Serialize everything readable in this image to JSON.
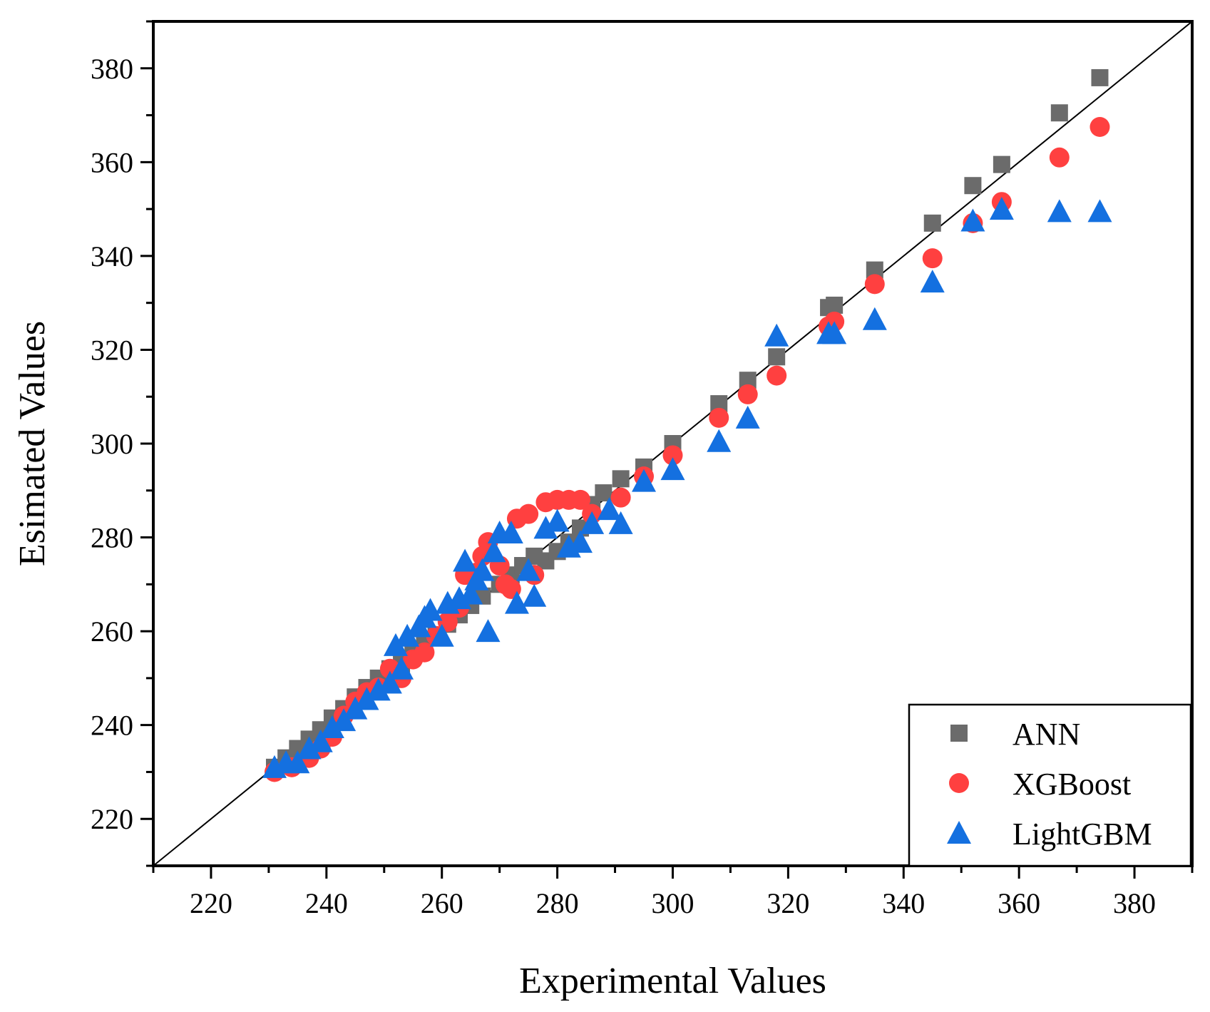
{
  "chart_data": {
    "type": "scatter",
    "title": "",
    "xlabel": "Experimental Values",
    "ylabel": "Esimated Values",
    "xlim": [
      210,
      390
    ],
    "ylim": [
      210,
      390
    ],
    "x_ticks": [
      "220",
      "240",
      "260",
      "280",
      "300",
      "320",
      "340",
      "360",
      "380"
    ],
    "y_ticks": [
      "220",
      "240",
      "260",
      "280",
      "300",
      "320",
      "340",
      "360",
      "380"
    ],
    "reference_line": {
      "from": [
        210,
        210
      ],
      "to": [
        390,
        390
      ]
    },
    "legend_position": "bottom-right",
    "series": [
      {
        "name": "ANN",
        "marker": "square",
        "color": "#6b6b6b",
        "points": [
          [
            231,
            231
          ],
          [
            233,
            233
          ],
          [
            235,
            235
          ],
          [
            237,
            237
          ],
          [
            239,
            239
          ],
          [
            241,
            241.5
          ],
          [
            243,
            243.5
          ],
          [
            245,
            246
          ],
          [
            247,
            248
          ],
          [
            249,
            250
          ],
          [
            251,
            252
          ],
          [
            253,
            253
          ],
          [
            255,
            255.5
          ],
          [
            257,
            257
          ],
          [
            259,
            259
          ],
          [
            261,
            261.5
          ],
          [
            263,
            263.5
          ],
          [
            265,
            265.5
          ],
          [
            267,
            267.5
          ],
          [
            270,
            270
          ],
          [
            272,
            272
          ],
          [
            274,
            274
          ],
          [
            276,
            276
          ],
          [
            278,
            275
          ],
          [
            280,
            277
          ],
          [
            282,
            279
          ],
          [
            284,
            282
          ],
          [
            286,
            287
          ],
          [
            288,
            289.5
          ],
          [
            291,
            292.5
          ],
          [
            295,
            295
          ],
          [
            300,
            300
          ],
          [
            308,
            308.5
          ],
          [
            313,
            313.5
          ],
          [
            318,
            318.5
          ],
          [
            327,
            329
          ],
          [
            328,
            329.5
          ],
          [
            335,
            337
          ],
          [
            345,
            347
          ],
          [
            352,
            355
          ],
          [
            357,
            359.5
          ],
          [
            367,
            370.5
          ],
          [
            374,
            378
          ]
        ]
      },
      {
        "name": "XGBoost",
        "marker": "circle",
        "color": "#ff4040",
        "points": [
          [
            231,
            230
          ],
          [
            234,
            231
          ],
          [
            237,
            233
          ],
          [
            239,
            235
          ],
          [
            241,
            237.5
          ],
          [
            243,
            242
          ],
          [
            245,
            245
          ],
          [
            247,
            247
          ],
          [
            249,
            248
          ],
          [
            251,
            252
          ],
          [
            253,
            250
          ],
          [
            255,
            254
          ],
          [
            257,
            255.5
          ],
          [
            259,
            259
          ],
          [
            261,
            262
          ],
          [
            263,
            265
          ],
          [
            264,
            272
          ],
          [
            266,
            272.5
          ],
          [
            267,
            276
          ],
          [
            268,
            279
          ],
          [
            270,
            274
          ],
          [
            271,
            270
          ],
          [
            272,
            269
          ],
          [
            273,
            284
          ],
          [
            275,
            285
          ],
          [
            276,
            272
          ],
          [
            278,
            287.5
          ],
          [
            280,
            288
          ],
          [
            282,
            288
          ],
          [
            284,
            288
          ],
          [
            286,
            285
          ],
          [
            291,
            288.5
          ],
          [
            295,
            293
          ],
          [
            300,
            297.5
          ],
          [
            308,
            305.5
          ],
          [
            313,
            310.5
          ],
          [
            318,
            314.5
          ],
          [
            327,
            325
          ],
          [
            328,
            326
          ],
          [
            335,
            334
          ],
          [
            345,
            339.5
          ],
          [
            352,
            347
          ],
          [
            357,
            351.5
          ],
          [
            367,
            361
          ],
          [
            374,
            367.5
          ]
        ]
      },
      {
        "name": "LightGBM",
        "marker": "triangle",
        "color": "#1470e0",
        "points": [
          [
            231,
            231
          ],
          [
            233,
            232
          ],
          [
            235,
            232
          ],
          [
            237,
            235
          ],
          [
            239,
            236.5
          ],
          [
            241,
            239.5
          ],
          [
            243,
            241
          ],
          [
            245,
            243.5
          ],
          [
            247,
            245.5
          ],
          [
            249,
            247.5
          ],
          [
            251,
            249
          ],
          [
            252,
            257
          ],
          [
            253,
            252
          ],
          [
            254,
            259
          ],
          [
            256,
            261
          ],
          [
            257,
            263
          ],
          [
            258,
            264.5
          ],
          [
            260,
            259
          ],
          [
            261,
            266
          ],
          [
            263,
            267
          ],
          [
            264,
            275
          ],
          [
            265,
            268
          ],
          [
            266,
            271
          ],
          [
            267,
            273
          ],
          [
            268,
            260
          ],
          [
            269,
            277
          ],
          [
            270,
            281
          ],
          [
            272,
            281
          ],
          [
            273,
            266
          ],
          [
            275,
            273
          ],
          [
            276,
            267.5
          ],
          [
            278,
            282
          ],
          [
            280,
            283.5
          ],
          [
            282,
            278
          ],
          [
            284,
            279
          ],
          [
            286,
            283
          ],
          [
            289,
            286
          ],
          [
            291,
            283
          ],
          [
            295,
            292
          ],
          [
            300,
            294.5
          ],
          [
            308,
            300.5
          ],
          [
            313,
            305.5
          ],
          [
            318,
            323
          ],
          [
            327,
            323.5
          ],
          [
            328,
            323.5
          ],
          [
            335,
            326.5
          ],
          [
            345,
            334.5
          ],
          [
            352,
            347.5
          ],
          [
            357,
            350
          ],
          [
            367,
            349.5
          ],
          [
            374,
            349.5
          ]
        ]
      }
    ]
  }
}
